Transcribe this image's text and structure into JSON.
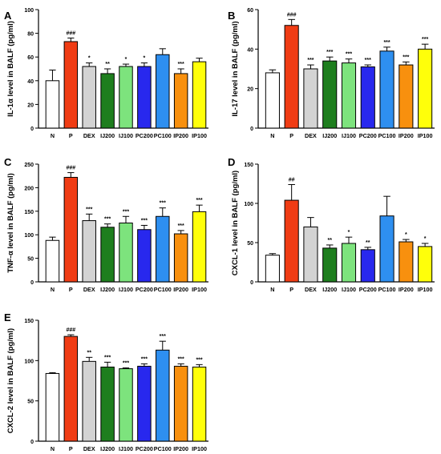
{
  "chart_data": [
    {
      "panel": "A",
      "type": "bar",
      "ylabel": "IL-1α level in BALF (pg/ml)",
      "ylim": [
        0,
        100
      ],
      "yticks": [
        0,
        20,
        40,
        60,
        80,
        100
      ],
      "categories": [
        "N",
        "P",
        "DEX",
        "IJ200",
        "IJ100",
        "PC200",
        "PC100",
        "IP200",
        "IP100"
      ],
      "values": [
        40,
        73,
        52,
        46,
        52,
        52,
        62,
        46,
        56
      ],
      "errors": [
        9,
        3,
        3,
        4,
        2,
        3,
        5,
        4,
        3
      ],
      "annotations": [
        "",
        "###",
        "*",
        "**",
        "*",
        "*",
        "",
        "***",
        ""
      ]
    },
    {
      "panel": "B",
      "type": "bar",
      "ylabel": "IL-17 level in BALF (pg/ml)",
      "ylim": [
        0,
        60
      ],
      "yticks": [
        0,
        20,
        40,
        60
      ],
      "categories": [
        "N",
        "P",
        "DEX",
        "IJ200",
        "IJ100",
        "PC200",
        "PC100",
        "IP200",
        "IP100"
      ],
      "values": [
        28,
        52,
        30,
        34,
        33,
        31,
        39,
        32,
        40
      ],
      "errors": [
        1.5,
        3,
        2,
        2,
        2,
        1,
        2,
        1.5,
        2.5
      ],
      "annotations": [
        "",
        "###",
        "***",
        "***",
        "***",
        "***",
        "***",
        "***",
        "***"
      ]
    },
    {
      "panel": "C",
      "type": "bar",
      "ylabel": "TNF-α level in BALF (pg/ml)",
      "ylim": [
        0,
        250
      ],
      "yticks": [
        0,
        50,
        100,
        150,
        200,
        250
      ],
      "categories": [
        "N",
        "P",
        "DEX",
        "IJ200",
        "IJ100",
        "PC200",
        "PC100",
        "IP200",
        "IP100"
      ],
      "values": [
        88,
        222,
        130,
        116,
        125,
        111,
        139,
        102,
        149
      ],
      "errors": [
        7,
        10,
        14,
        7,
        14,
        9,
        18,
        7,
        14
      ],
      "annotations": [
        "",
        "###",
        "***",
        "***",
        "***",
        "***",
        "***",
        "***",
        "***"
      ]
    },
    {
      "panel": "D",
      "type": "bar",
      "ylabel": "CXCL-1 level in BALF (pg/ml)",
      "ylim": [
        0,
        150
      ],
      "yticks": [
        0,
        50,
        100,
        150
      ],
      "categories": [
        "N",
        "P",
        "DEX",
        "IJ200",
        "IJ100",
        "PC200",
        "PC100",
        "IP200",
        "IP100"
      ],
      "values": [
        34,
        104,
        70,
        43,
        49,
        41,
        84,
        51,
        45
      ],
      "errors": [
        2,
        20,
        12,
        4,
        8,
        3,
        25,
        3,
        4
      ],
      "annotations": [
        "",
        "##",
        "",
        "**",
        "*",
        "**",
        "",
        "*",
        "*"
      ]
    },
    {
      "panel": "E",
      "type": "bar",
      "ylabel": "CXCL-2 level in BALF (pg/ml)",
      "ylim": [
        0,
        150
      ],
      "yticks": [
        0,
        50,
        100,
        150
      ],
      "categories": [
        "N",
        "P",
        "DEX",
        "IJ200",
        "IJ100",
        "PC200",
        "PC100",
        "IP200",
        "IP100"
      ],
      "values": [
        84,
        130,
        99,
        92,
        90,
        93,
        113,
        93,
        92
      ],
      "errors": [
        1,
        2,
        5,
        6,
        1,
        3,
        11,
        3,
        3
      ],
      "annotations": [
        "",
        "###",
        "**",
        "***",
        "***",
        "***",
        "***",
        "***",
        "***"
      ]
    }
  ],
  "bar_colors": [
    "#ffffff",
    "#f03c14",
    "#d3d3d3",
    "#1e7e1e",
    "#7de37d",
    "#2828ee",
    "#2e8ff0",
    "#f8900e",
    "#ffff0a"
  ]
}
